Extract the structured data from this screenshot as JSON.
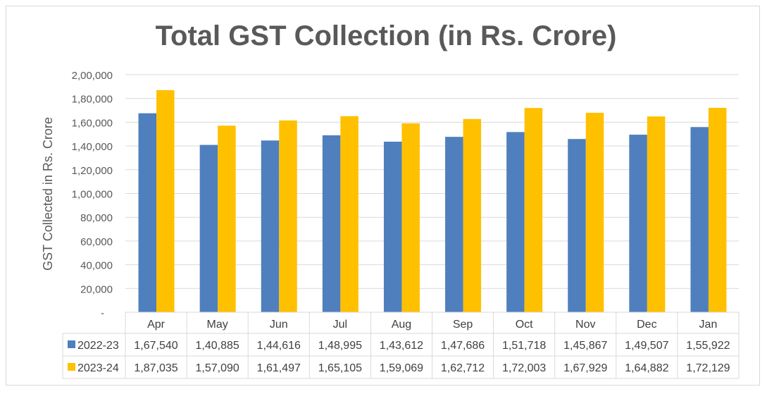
{
  "chart_data": {
    "type": "bar",
    "title": "Total GST Collection (in Rs. Crore)",
    "xlabel": "",
    "ylabel": "GST Collected in Rs. Crore",
    "ylim": [
      0,
      200000
    ],
    "yticks": [
      "-",
      "20,000",
      "40,000",
      "60,000",
      "80,000",
      "1,00,000",
      "1,20,000",
      "1,40,000",
      "1,60,000",
      "1,80,000",
      "2,00,000"
    ],
    "grid": true,
    "legend": "data-table",
    "categories": [
      "Apr",
      "May",
      "Jun",
      "Jul",
      "Aug",
      "Sep",
      "Oct",
      "Nov",
      "Dec",
      "Jan"
    ],
    "series": [
      {
        "name": "2022-23",
        "color": "#4f7fbd",
        "values": [
          167540,
          140885,
          144616,
          148995,
          143612,
          147686,
          151718,
          145867,
          149507,
          155922
        ],
        "labels": [
          "1,67,540",
          "1,40,885",
          "1,44,616",
          "1,48,995",
          "1,43,612",
          "1,47,686",
          "1,51,718",
          "1,45,867",
          "1,49,507",
          "1,55,922"
        ]
      },
      {
        "name": "2023-24",
        "color": "#ffc000",
        "values": [
          187035,
          157090,
          161497,
          165105,
          159069,
          162712,
          172003,
          167929,
          164882,
          172129
        ],
        "labels": [
          "1,87,035",
          "1,57,090",
          "1,61,497",
          "1,65,105",
          "1,59,069",
          "1,62,712",
          "1,72,003",
          "1,67,929",
          "1,64,882",
          "1,72,129"
        ]
      }
    ]
  }
}
